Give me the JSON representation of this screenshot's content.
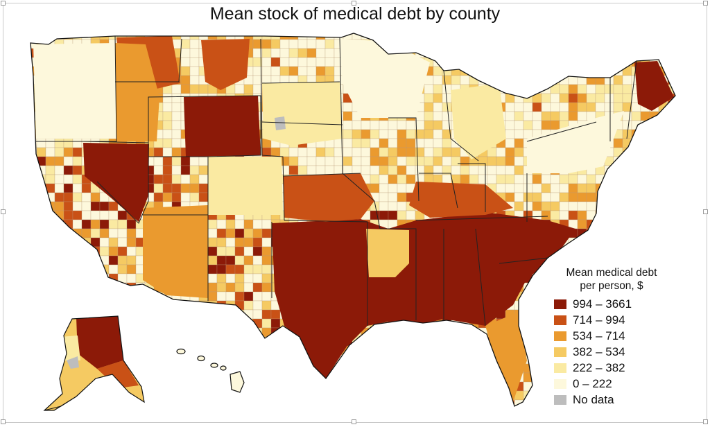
{
  "title": "Mean stock of medical debt by county",
  "legend": {
    "heading_line1": "Mean medical debt",
    "heading_line2": "per person, $",
    "items": [
      {
        "label": "994 – 3661",
        "color": "#8c1a08"
      },
      {
        "label": "714 – 994",
        "color": "#c95116"
      },
      {
        "label": "534 – 714",
        "color": "#ea9a2f"
      },
      {
        "label": "382 – 534",
        "color": "#f5ca62"
      },
      {
        "label": "222 – 382",
        "color": "#faeaa2"
      },
      {
        "label": "0 – 222",
        "color": "#fdf8dc"
      },
      {
        "label": "No data",
        "color": "#bdbdbd"
      }
    ]
  }
}
